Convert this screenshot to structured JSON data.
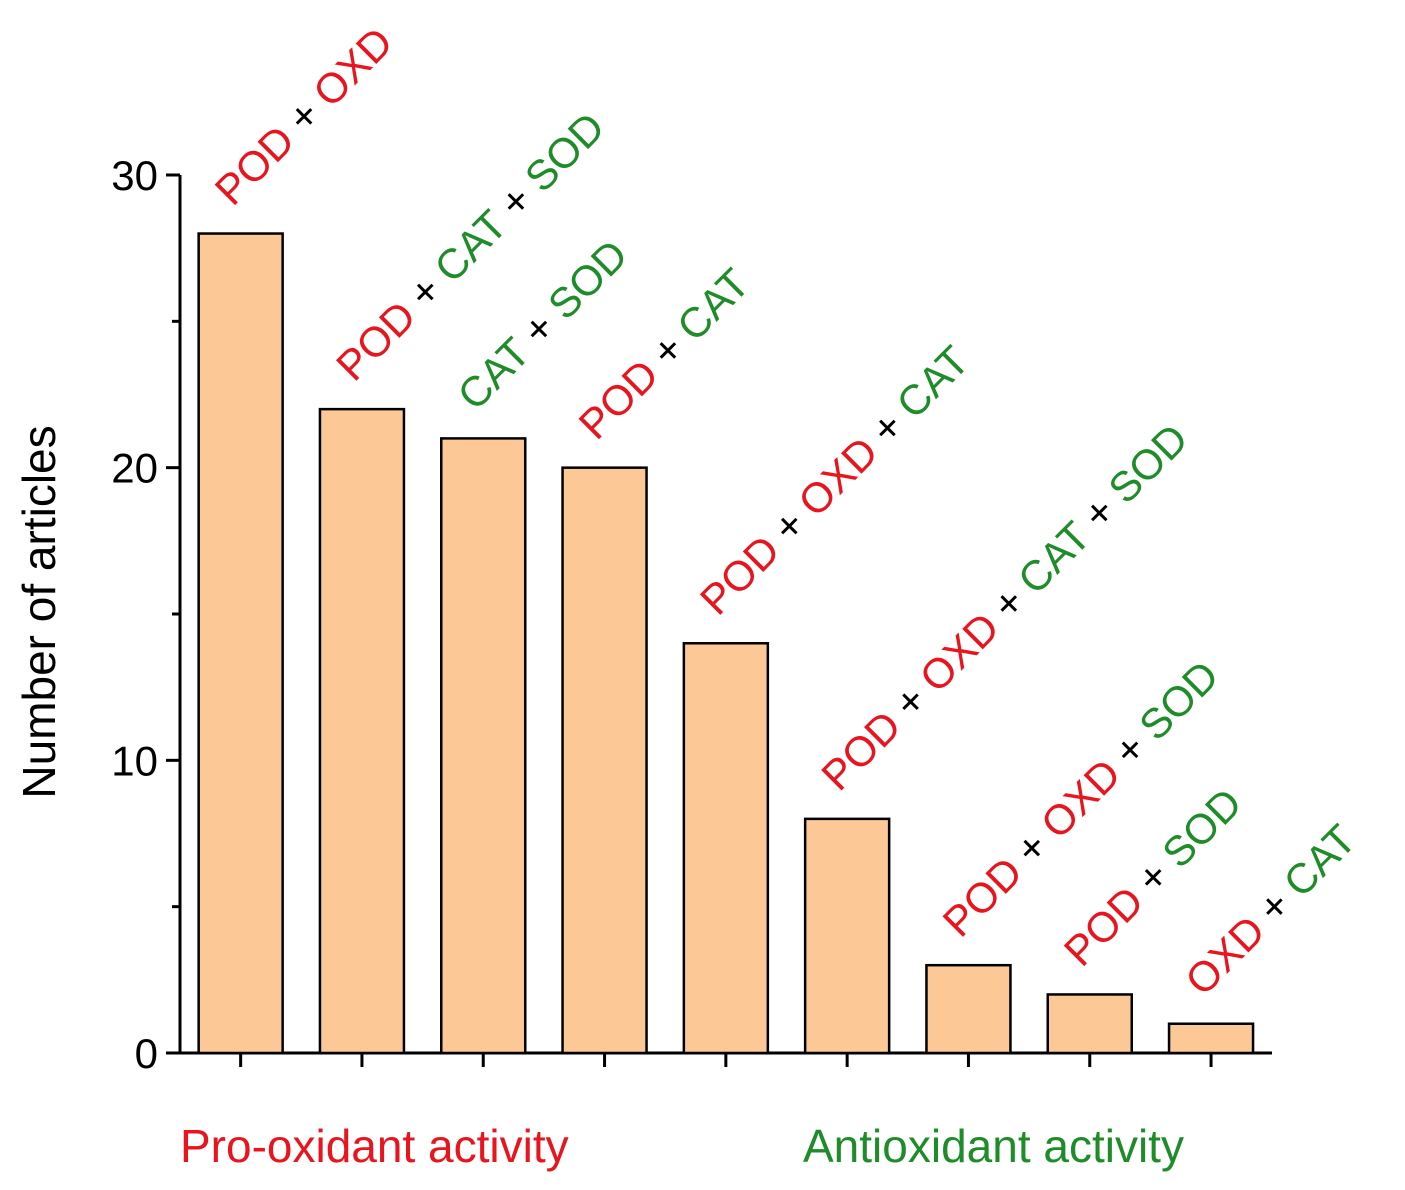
{
  "chart_data": {
    "type": "bar",
    "ylabel": "Number of articles",
    "xlabel": "",
    "ylim": [
      0,
      30
    ],
    "y_ticks": [
      "0",
      "10",
      "20",
      "30"
    ],
    "y_minor_step": 5,
    "grid": false,
    "categories": [
      "POD + OXD",
      "POD + CAT + SOD",
      "CAT + SOD",
      "POD + CAT",
      "POD + OXD + CAT",
      "POD + OXD + CAT + SOD",
      "POD + OXD + SOD",
      "POD + SOD",
      "OXD + CAT"
    ],
    "values": [
      28,
      22,
      21,
      20,
      14,
      8,
      3,
      2,
      1
    ],
    "category_label_parts": [
      [
        {
          "text": "POD",
          "kind": "pro"
        },
        {
          "text": " + ",
          "kind": "op"
        },
        {
          "text": "OXD",
          "kind": "pro"
        }
      ],
      [
        {
          "text": "POD",
          "kind": "pro"
        },
        {
          "text": " + ",
          "kind": "op"
        },
        {
          "text": "CAT",
          "kind": "anti"
        },
        {
          "text": " + ",
          "kind": "op"
        },
        {
          "text": "SOD",
          "kind": "anti"
        }
      ],
      [
        {
          "text": "CAT",
          "kind": "anti"
        },
        {
          "text": " + ",
          "kind": "op"
        },
        {
          "text": "SOD",
          "kind": "anti"
        }
      ],
      [
        {
          "text": "POD",
          "kind": "pro"
        },
        {
          "text": " + ",
          "kind": "op"
        },
        {
          "text": "CAT",
          "kind": "anti"
        }
      ],
      [
        {
          "text": "POD",
          "kind": "pro"
        },
        {
          "text": " + ",
          "kind": "op"
        },
        {
          "text": "OXD",
          "kind": "pro"
        },
        {
          "text": " + ",
          "kind": "op"
        },
        {
          "text": "CAT",
          "kind": "anti"
        }
      ],
      [
        {
          "text": "POD",
          "kind": "pro"
        },
        {
          "text": " + ",
          "kind": "op"
        },
        {
          "text": "OXD",
          "kind": "pro"
        },
        {
          "text": " + ",
          "kind": "op"
        },
        {
          "text": "CAT",
          "kind": "anti"
        },
        {
          "text": " + ",
          "kind": "op"
        },
        {
          "text": "SOD",
          "kind": "anti"
        }
      ],
      [
        {
          "text": "POD",
          "kind": "pro"
        },
        {
          "text": " + ",
          "kind": "op"
        },
        {
          "text": "OXD",
          "kind": "pro"
        },
        {
          "text": " + ",
          "kind": "op"
        },
        {
          "text": "SOD",
          "kind": "anti"
        }
      ],
      [
        {
          "text": "POD",
          "kind": "pro"
        },
        {
          "text": " + ",
          "kind": "op"
        },
        {
          "text": "SOD",
          "kind": "anti"
        }
      ],
      [
        {
          "text": "OXD",
          "kind": "pro"
        },
        {
          "text": " + ",
          "kind": "op"
        },
        {
          "text": "CAT",
          "kind": "anti"
        }
      ]
    ],
    "annotations": {
      "pro_oxidant": "Pro-oxidant activity",
      "antioxidant": "Antioxidant activity"
    }
  },
  "colors": {
    "bar_fill": "#FCC896",
    "bar_stroke": "#000000",
    "pro": "#E8141E",
    "anti": "#1E8C28",
    "op": "#000000",
    "axis": "#000000"
  }
}
